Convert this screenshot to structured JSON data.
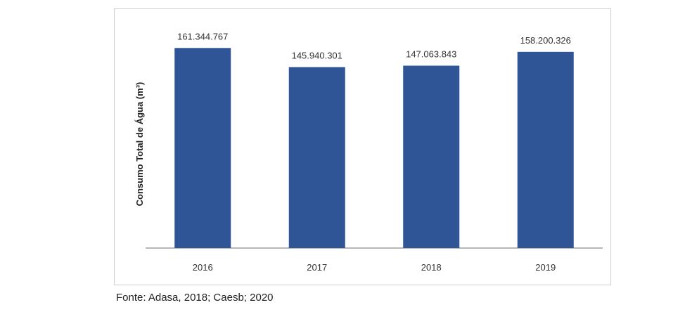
{
  "chart_data": {
    "type": "bar",
    "categories": [
      "2016",
      "2017",
      "2018",
      "2019"
    ],
    "values": [
      161344767,
      145940301,
      147063843,
      158200326
    ],
    "value_labels": [
      "161.344.767",
      "145.940.301",
      "147.063.843",
      "158.200.326"
    ],
    "title": "",
    "xlabel": "",
    "ylabel": "Consumo Total de Água (m³)",
    "ylim": [
      0,
      170000000
    ],
    "grid": false,
    "legend": "none",
    "bar_color": "#2f5597",
    "axis_color": "#8c8c8c"
  },
  "source": "Fonte: Adasa, 2018; Caesb; 2020"
}
